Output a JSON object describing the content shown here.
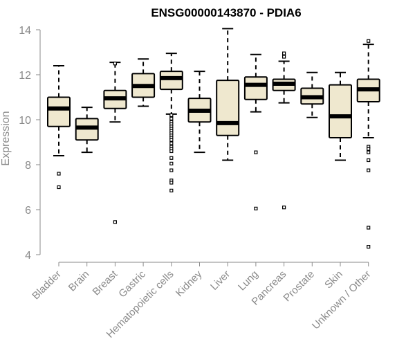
{
  "chart_data": {
    "type": "box",
    "title": "ENSG00000143870 - PDIA6",
    "ylabel": "Expression",
    "xlabel": "",
    "ylim": [
      4,
      14
    ],
    "yticks": [
      4,
      6,
      8,
      10,
      12,
      14
    ],
    "grid": false,
    "box_color": "#efe8cf",
    "categories": [
      "Bladder",
      "Brain",
      "Breast",
      "Gastric",
      "Hematopoietic cells",
      "Kidney",
      "Liver",
      "Lung",
      "Pancreas",
      "Prostate",
      "Skin",
      "Unknown / Other"
    ],
    "boxes": [
      {
        "name": "Bladder",
        "whisker_low": 8.4,
        "q1": 9.7,
        "median": 10.5,
        "q3": 11.0,
        "whisker_high": 12.4,
        "outliers": [
          7.6,
          7.0
        ]
      },
      {
        "name": "Brain",
        "whisker_low": 8.55,
        "q1": 9.1,
        "median": 9.65,
        "q3": 10.05,
        "whisker_high": 10.55,
        "outliers": []
      },
      {
        "name": "Breast",
        "whisker_low": 9.9,
        "q1": 10.5,
        "median": 10.95,
        "q3": 11.3,
        "whisker_high": 12.55,
        "outliers": [
          12.5,
          5.45
        ]
      },
      {
        "name": "Gastric",
        "whisker_low": 10.6,
        "q1": 11.0,
        "median": 11.5,
        "q3": 12.05,
        "whisker_high": 12.7,
        "outliers": []
      },
      {
        "name": "Hematopoietic cells",
        "whisker_low": 10.25,
        "q1": 11.35,
        "median": 11.85,
        "q3": 12.15,
        "whisker_high": 12.95,
        "outliers": [
          10.2,
          10.05,
          9.9,
          9.8,
          9.7,
          9.6,
          9.5,
          9.4,
          9.3,
          9.2,
          9.1,
          8.95,
          8.8,
          8.7,
          8.6,
          8.3,
          8.05,
          7.75,
          7.3,
          7.2,
          6.85
        ]
      },
      {
        "name": "Kidney",
        "whisker_low": 8.55,
        "q1": 9.9,
        "median": 10.4,
        "q3": 10.95,
        "whisker_high": 12.15,
        "outliers": []
      },
      {
        "name": "Liver",
        "whisker_low": 8.2,
        "q1": 9.3,
        "median": 9.85,
        "q3": 11.75,
        "whisker_high": 14.05,
        "outliers": []
      },
      {
        "name": "Lung",
        "whisker_low": 10.35,
        "q1": 10.9,
        "median": 11.55,
        "q3": 11.9,
        "whisker_high": 12.9,
        "outliers": [
          8.55,
          6.05
        ]
      },
      {
        "name": "Pancreas",
        "whisker_low": 10.75,
        "q1": 11.3,
        "median": 11.6,
        "q3": 11.8,
        "whisker_high": 12.6,
        "outliers": [
          12.95,
          12.8,
          6.1
        ]
      },
      {
        "name": "Prostate",
        "whisker_low": 10.1,
        "q1": 10.7,
        "median": 11.0,
        "q3": 11.4,
        "whisker_high": 12.1,
        "outliers": []
      },
      {
        "name": "Skin",
        "whisker_low": 8.2,
        "q1": 9.2,
        "median": 10.15,
        "q3": 11.55,
        "whisker_high": 12.1,
        "outliers": []
      },
      {
        "name": "Unknown / Other",
        "whisker_low": 9.2,
        "q1": 10.8,
        "median": 11.35,
        "q3": 11.8,
        "whisker_high": 13.35,
        "outliers": [
          13.5,
          8.8,
          8.7,
          8.55,
          8.2,
          7.75,
          5.2,
          4.35
        ]
      }
    ]
  }
}
